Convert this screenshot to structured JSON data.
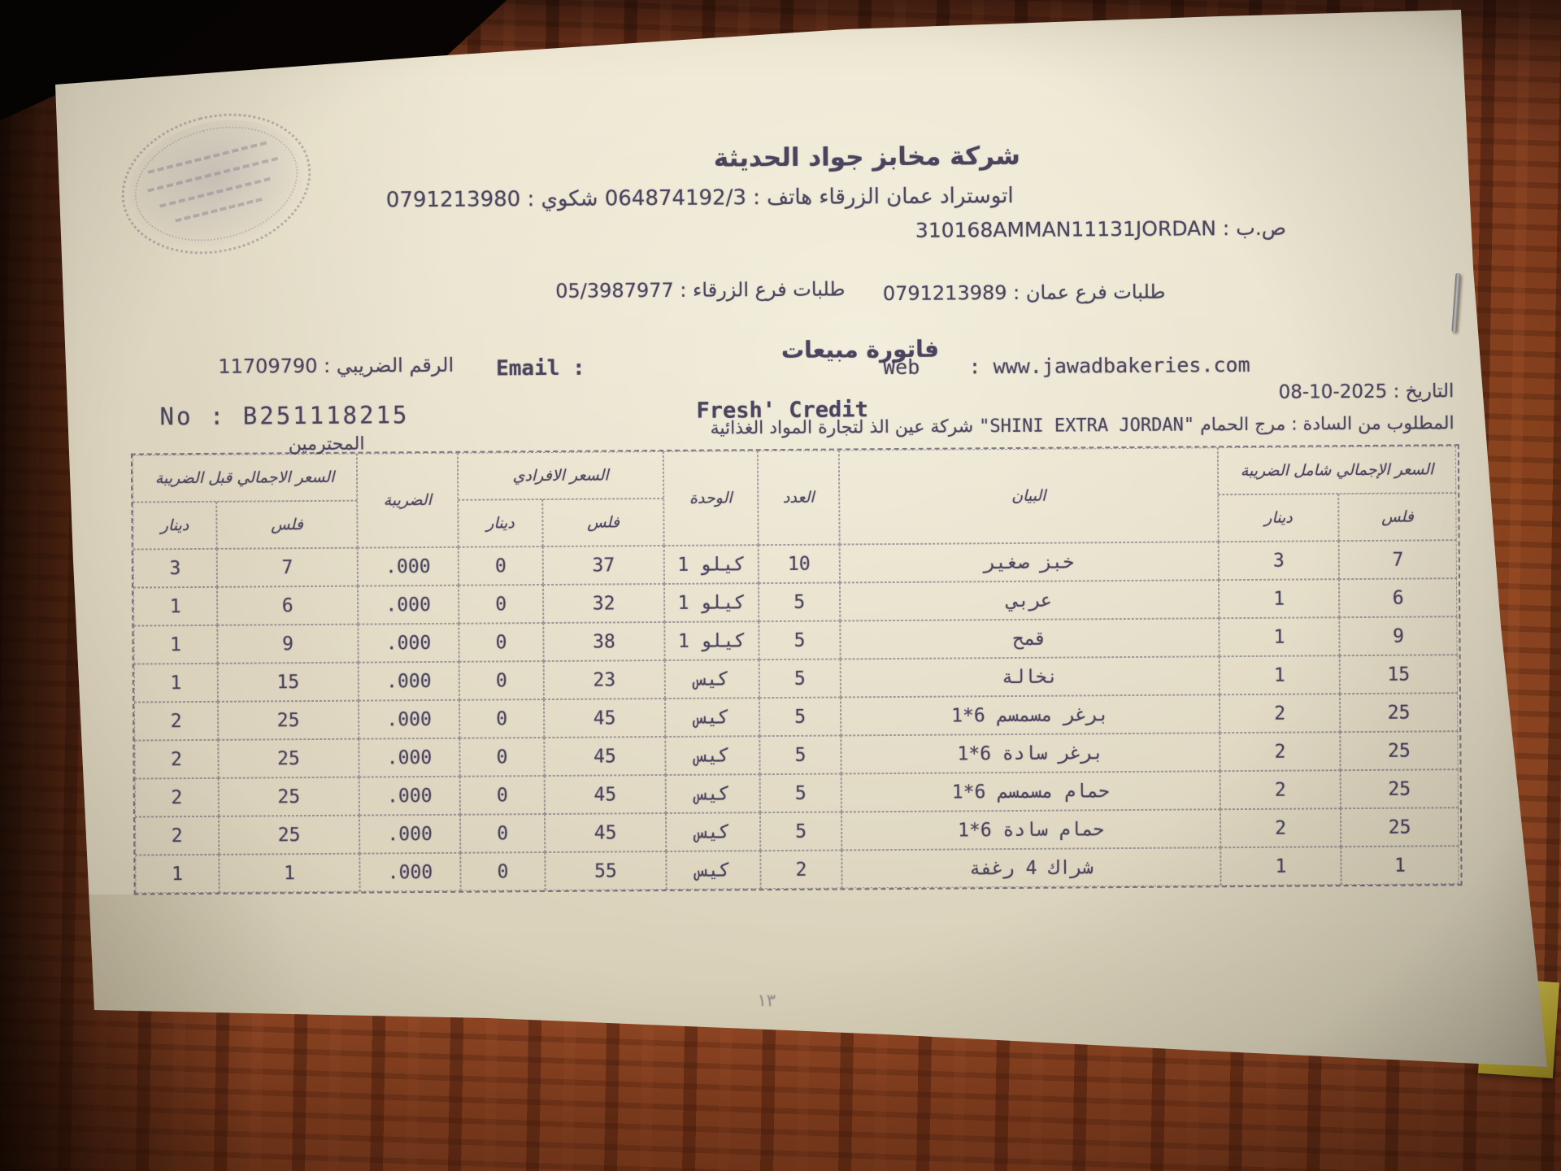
{
  "header": {
    "company_name": "شركة مخابز جواد الحديثة",
    "address_phone_line": "اتوستراد عمان الزرقاء هاتف : 064874192/3 شكوي : 0791213980",
    "po_box_line": "ص.ب :  310168AMMAN11131JORDAN",
    "zarqa_orders": "طلبات فرع الزرقاء : 05/3987977",
    "amman_orders": "طلبات فرع عمان : 0791213989",
    "doc_title": "فاتورة مبيعات",
    "tax_number_line": "الرقم الضريبي : 11709790",
    "email_label": "Email :",
    "web_line": "Web    : www.jawadbakeries.com",
    "date_line": "التاريخ :  2025-10-08",
    "invoice_no_line": "No : B251118215",
    "payment_type": "Fresh' Credit",
    "respected": "المحترمين"
  },
  "customer": {
    "label": "المطلوب من السادة :",
    "area": "مرج الحمام",
    "latin_name": "\"SHINI EXTRA JORDAN\"",
    "arabic_name": "شركة عين الذ لتجارة المواد الغذائية"
  },
  "table": {
    "headers": {
      "pre_tax_total": "السعر الاجمالي قبل الضريبة",
      "tax": "الضريبة",
      "unit_price": "السعر الافرادي",
      "unit": "الوحدة",
      "qty": "العدد",
      "description": "البيان",
      "total_with_tax": "السعر الإجمالي شامل الضريبة",
      "dinar": "دينار",
      "fils": "فلس"
    },
    "rows": [
      {
        "cells": [
          "3",
          "7",
          ".000",
          "0",
          "37",
          "كيلو 1",
          "10",
          "خبز صغير",
          "3",
          "7"
        ]
      },
      {
        "cells": [
          "1",
          "6",
          ".000",
          "0",
          "32",
          "كيلو 1",
          "5",
          "عربي",
          "1",
          "6"
        ]
      },
      {
        "cells": [
          "1",
          "9",
          ".000",
          "0",
          "38",
          "كيلو 1",
          "5",
          "قمح",
          "1",
          "9"
        ]
      },
      {
        "cells": [
          "1",
          "15",
          ".000",
          "0",
          "23",
          "كيس",
          "5",
          "نخالة",
          "1",
          "15"
        ]
      },
      {
        "cells": [
          "2",
          "25",
          ".000",
          "0",
          "45",
          "كيس",
          "5",
          "برغر مسمسم 6*1",
          "2",
          "25"
        ]
      },
      {
        "cells": [
          "2",
          "25",
          ".000",
          "0",
          "45",
          "كيس",
          "5",
          "برغر سادة 6*1",
          "2",
          "25"
        ]
      },
      {
        "cells": [
          "2",
          "25",
          ".000",
          "0",
          "45",
          "كيس",
          "5",
          "حمام مسمسم 6*1",
          "2",
          "25"
        ]
      },
      {
        "cells": [
          "2",
          "25",
          ".000",
          "0",
          "45",
          "كيس",
          "5",
          "حمام سادة 6*1",
          "2",
          "25"
        ]
      },
      {
        "cells": [
          "1",
          "1",
          ".000",
          "0",
          "55",
          "كيس",
          "2",
          "شراك 4 رغفة",
          "1",
          "1"
        ]
      }
    ]
  },
  "extras": {
    "faint_page_mark": "١٣"
  },
  "colors": {
    "paper": "#e6dfca",
    "print": "#443e5a",
    "wood": "#93471f",
    "wood_dark": "#2c1208",
    "sticky_note": "#d9c238",
    "stamp": "#605a78"
  }
}
